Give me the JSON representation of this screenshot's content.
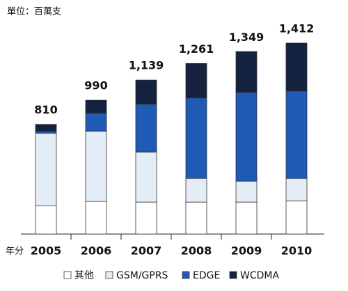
{
  "chart_data": {
    "type": "stacked-bar",
    "unit_note": "單位：百萬支",
    "x_label": "年分",
    "categories": [
      "2005",
      "2006",
      "2007",
      "2008",
      "2009",
      "2010"
    ],
    "series": [
      {
        "name": "其他",
        "color": "#ffffff",
        "values": [
          210,
          241,
          236,
          236,
          236,
          246
        ]
      },
      {
        "name": "GSM/GPRS",
        "color": "#e4ecf6",
        "values": [
          534,
          519,
          370,
          175,
          154,
          164
        ]
      },
      {
        "name": "EDGE",
        "color": "#1f5bb5",
        "values": [
          15,
          133,
          354,
          596,
          657,
          647
        ]
      },
      {
        "name": "WCDMA",
        "color": "#14213f",
        "values": [
          51,
          97,
          179,
          254,
          302,
          355
        ]
      }
    ],
    "totals": [
      810,
      990,
      1139,
      1261,
      1349,
      1412
    ],
    "total_labels": [
      "810",
      "990",
      "1,139",
      "1,261",
      "1,349",
      "1,412"
    ]
  }
}
